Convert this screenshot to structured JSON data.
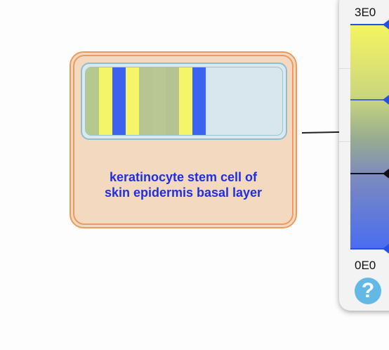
{
  "node": {
    "label_line1": "keratinocyte stem cell of",
    "label_line2": "skin epidermis basal layer",
    "heatmap_cells": [
      {
        "color": "#b5c98f"
      },
      {
        "color": "#f5f56a"
      },
      {
        "color": "#3d63ee"
      },
      {
        "color": "#f5f56a"
      },
      {
        "color": "#b6c592"
      },
      {
        "color": "#b9c794"
      },
      {
        "color": "#b4c390"
      },
      {
        "color": "#f5f56a"
      },
      {
        "color": "#3d63ee"
      }
    ]
  },
  "legend": {
    "max_label": "3E0",
    "min_label": "0E0",
    "help_icon": "question-icon",
    "colors": {
      "high": "#f5f55f",
      "mid": "#9aae8e",
      "low": "#4a6cf2"
    }
  },
  "colors": {
    "node_fill": "#f2d9bf",
    "node_border": "#ee9a5e",
    "label_text": "#1f2fe0"
  }
}
